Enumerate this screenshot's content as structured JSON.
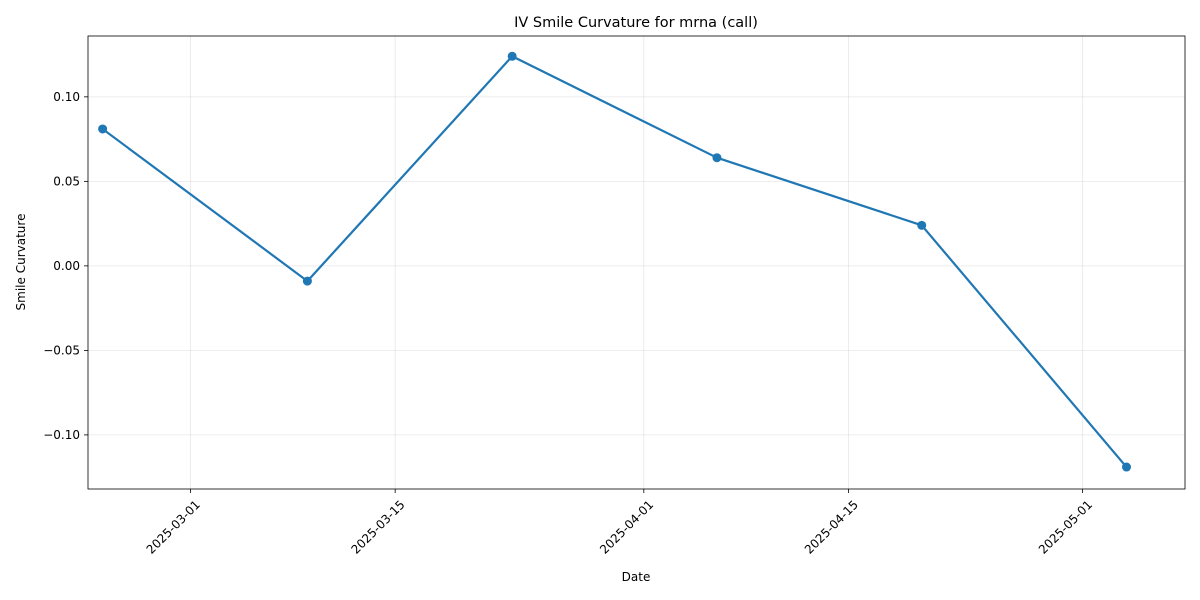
{
  "chart_data": {
    "type": "line",
    "title": "IV Smile Curvature for mrna (call)",
    "xlabel": "Date",
    "ylabel": "Smile Curvature",
    "x": [
      "2025-02-23",
      "2025-03-09",
      "2025-03-23",
      "2025-04-06",
      "2025-04-20",
      "2025-05-04"
    ],
    "series": [
      {
        "values": [
          0.081,
          -0.009,
          0.124,
          0.064,
          0.024,
          -0.119
        ]
      }
    ],
    "xlim": [
      "2025-02-22",
      "2025-05-08"
    ],
    "ylim": [
      -0.132,
      0.136
    ],
    "xticks": [
      "2025-03-01",
      "2025-03-15",
      "2025-04-01",
      "2025-04-15",
      "2025-05-01"
    ],
    "yticks": [
      0.1,
      0.05,
      0.0,
      -0.05,
      -0.1
    ],
    "ytick_labels": [
      "0.10",
      "0.05",
      "0.00",
      "−0.05",
      "−0.10"
    ],
    "grid": true,
    "marker": "circle",
    "colors": {
      "line": "#1f77b4",
      "marker": "#1f77b4"
    }
  }
}
